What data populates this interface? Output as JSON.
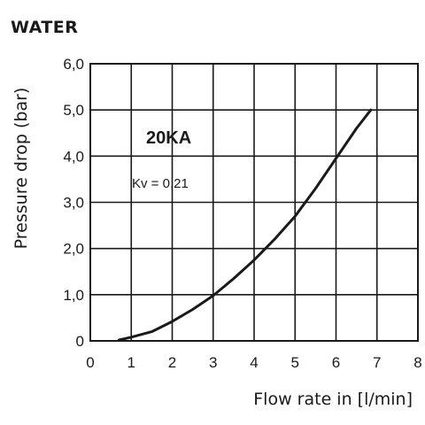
{
  "chart_data": {
    "type": "line",
    "title": "WATER",
    "xlabel": "Flow rate in [l/min]",
    "ylabel": "Pressure drop (bar)",
    "xlim": [
      0,
      8
    ],
    "ylim": [
      0,
      6
    ],
    "x_ticks": [
      "0",
      "1",
      "2",
      "3",
      "4",
      "5",
      "6",
      "7",
      "8"
    ],
    "y_ticks": [
      "0",
      "1,0",
      "2,0",
      "3,0",
      "4,0",
      "5,0",
      "6,0"
    ],
    "grid": true,
    "annotations": {
      "model": "20KA",
      "kv": "Kv = 0,21"
    },
    "series": [
      {
        "color": "#1a1a1a",
        "x": [
          0.7,
          1.0,
          1.5,
          2.0,
          2.5,
          3.0,
          3.5,
          4.0,
          4.5,
          5.0,
          5.5,
          6.0,
          6.5,
          6.85
        ],
        "y": [
          0.02,
          0.08,
          0.2,
          0.42,
          0.68,
          0.98,
          1.35,
          1.75,
          2.2,
          2.7,
          3.3,
          3.95,
          4.6,
          5.0
        ]
      }
    ]
  }
}
